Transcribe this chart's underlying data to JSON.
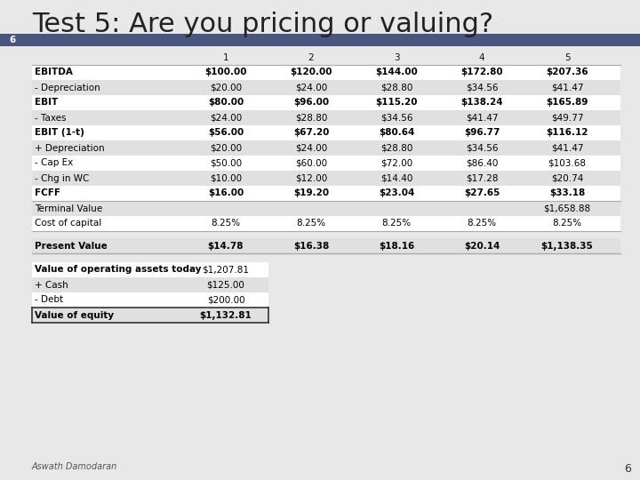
{
  "title": "Test 5: Are you pricing or valuing?",
  "slide_number": "6",
  "header_color": "#4a5580",
  "background_color": "#e8e8e8",
  "columns": [
    "",
    "1",
    "2",
    "3",
    "4",
    "5"
  ],
  "rows": [
    [
      "EBITDA",
      "$100.00",
      "$120.00",
      "$144.00",
      "$172.80",
      "$207.36"
    ],
    [
      "- Depreciation",
      "$20.00",
      "$24.00",
      "$28.80",
      "$34.56",
      "$41.47"
    ],
    [
      "EBIT",
      "$80.00",
      "$96.00",
      "$115.20",
      "$138.24",
      "$165.89"
    ],
    [
      "- Taxes",
      "$24.00",
      "$28.80",
      "$34.56",
      "$41.47",
      "$49.77"
    ],
    [
      "EBIT (1-t)",
      "$56.00",
      "$67.20",
      "$80.64",
      "$96.77",
      "$116.12"
    ],
    [
      "+ Depreciation",
      "$20.00",
      "$24.00",
      "$28.80",
      "$34.56",
      "$41.47"
    ],
    [
      "- Cap Ex",
      "$50.00",
      "$60.00",
      "$72.00",
      "$86.40",
      "$103.68"
    ],
    [
      "- Chg in WC",
      "$10.00",
      "$12.00",
      "$14.40",
      "$17.28",
      "$20.74"
    ],
    [
      "FCFF",
      "$16.00",
      "$19.20",
      "$23.04",
      "$27.65",
      "$33.18"
    ],
    [
      "Terminal Value",
      "",
      "",
      "",
      "",
      "$1,658.88"
    ],
    [
      "Cost of capital",
      "8.25%",
      "8.25%",
      "8.25%",
      "8.25%",
      "8.25%"
    ],
    [
      "Present Value",
      "$14.78",
      "$16.38",
      "$18.16",
      "$20.14",
      "$1,138.35"
    ]
  ],
  "bold_rows": [
    0,
    2,
    4,
    8,
    11
  ],
  "separator_after": [
    8,
    10,
    11
  ],
  "extra_gap_after": [
    11
  ],
  "summary_rows": [
    [
      "Value of operating assets today",
      "$1,207.81"
    ],
    [
      "+ Cash",
      "$125.00"
    ],
    [
      "- Debt",
      "$200.00"
    ],
    [
      "Value of equity",
      "$1,132.81"
    ]
  ],
  "bold_summary_label": [
    0,
    3
  ],
  "bold_summary_val": [
    3
  ],
  "footer": "Aswath Damodaran",
  "corner_number": "6",
  "title_color": "#222222",
  "title_fontsize": 22,
  "row_alt_colors": [
    "#ffffff",
    "#e0e0e0"
  ],
  "cell_text_color": "#000000",
  "line_color": "#aaaaaa",
  "header_text_color": "#ffffff"
}
